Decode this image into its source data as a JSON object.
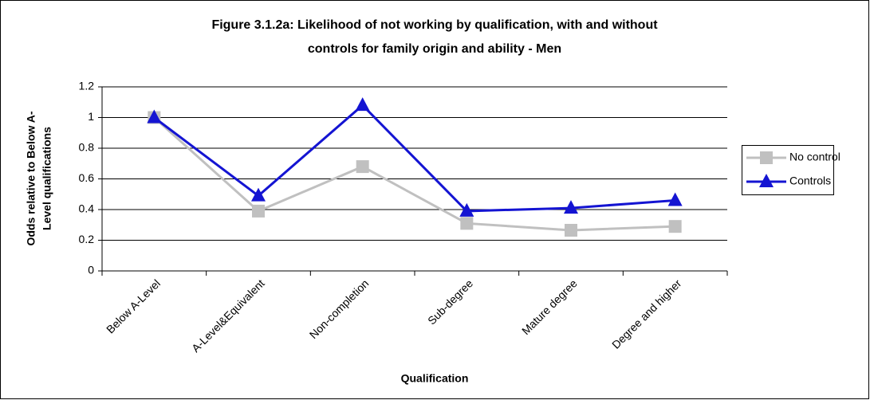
{
  "chart_data": {
    "type": "line",
    "title": [
      "Figure 3.1.2a: Likelihood of not working by qualification, with and without",
      "controls for family origin and ability - Men"
    ],
    "x_label": "Qualification",
    "y_label": [
      "Odds relative to Below A-",
      "Level qualifications"
    ],
    "categories": [
      "Below A-Level",
      "A-Level&Equivalent",
      "Non-completion",
      "Sub-degree",
      "Mature degree",
      "Degree and higher"
    ],
    "series": [
      {
        "name": "No control",
        "color": "#c0c0c0",
        "marker": "square",
        "values": [
          1,
          0.39,
          0.68,
          0.31,
          0.265,
          0.29
        ]
      },
      {
        "name": "Controls",
        "color": "#1414d2",
        "marker": "triangle",
        "values": [
          1,
          0.49,
          1.08,
          0.39,
          0.41,
          0.46
        ]
      }
    ],
    "ylim": [
      0,
      1.2
    ],
    "yticks": [
      0,
      0.2,
      0.4,
      0.6,
      0.8,
      1,
      1.2
    ],
    "grid": true,
    "legend": "right"
  }
}
